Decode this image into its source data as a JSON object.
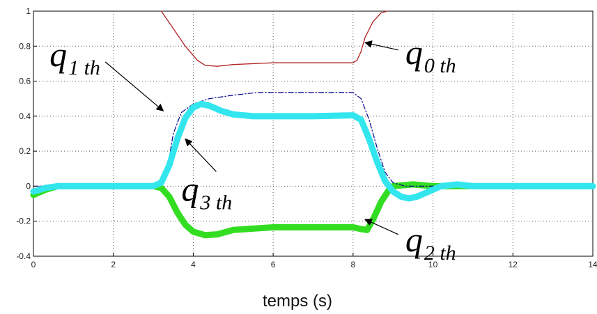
{
  "chart_data": {
    "type": "line",
    "title": "",
    "xlabel": "temps (s)",
    "ylabel": "",
    "xlim": [
      0,
      14
    ],
    "ylim": [
      -0.4,
      1
    ],
    "xticks": [
      "0",
      "2",
      "4",
      "6",
      "8",
      "10",
      "12",
      "14"
    ],
    "yticks": [
      "-0.4",
      "-0.2",
      "0",
      "0.2",
      "0.4",
      "0.6",
      "0.8",
      "1"
    ],
    "grid": true,
    "series": [
      {
        "color": "#b22222",
        "style": "solid",
        "x": [
          3.2,
          3.5,
          3.8,
          4.1,
          4.3,
          4.6,
          5.0,
          6.0,
          7.0,
          8.0,
          8.1,
          8.2,
          8.3,
          8.5,
          8.7,
          8.85
        ],
        "y": [
          1.0,
          0.9,
          0.8,
          0.72,
          0.69,
          0.685,
          0.695,
          0.705,
          0.705,
          0.705,
          0.72,
          0.77,
          0.85,
          0.94,
          0.99,
          1.0
        ]
      },
      {
        "color": "#00008b",
        "style": "dashdot",
        "x": [
          0,
          3.0,
          3.2,
          3.35,
          3.5,
          3.7,
          4.0,
          4.4,
          5.0,
          5.6,
          6.0,
          7.0,
          8.0,
          8.2,
          8.4,
          8.6,
          8.8,
          9.0,
          9.3,
          10.0,
          14.0
        ],
        "y": [
          0,
          0,
          0.02,
          0.1,
          0.3,
          0.42,
          0.47,
          0.5,
          0.52,
          0.535,
          0.535,
          0.535,
          0.535,
          0.5,
          0.38,
          0.22,
          0.08,
          0.02,
          0.0,
          0.0,
          0.0
        ]
      },
      {
        "color": "#33dd22",
        "style": "thick",
        "x": [
          0,
          0.1,
          0.3,
          0.6,
          3.0,
          3.2,
          3.4,
          3.6,
          3.8,
          4.0,
          4.3,
          4.6,
          5.0,
          6.0,
          7.0,
          8.0,
          8.2,
          8.35,
          8.5,
          8.7,
          8.9,
          9.0,
          9.5,
          10.0,
          14.0
        ],
        "y": [
          -0.05,
          -0.04,
          -0.02,
          0.0,
          0.0,
          -0.01,
          -0.06,
          -0.15,
          -0.22,
          -0.26,
          -0.28,
          -0.275,
          -0.25,
          -0.235,
          -0.235,
          -0.235,
          -0.245,
          -0.25,
          -0.19,
          -0.09,
          -0.02,
          0.0,
          0.01,
          0.0,
          0.0
        ]
      },
      {
        "color": "#33e6ee",
        "style": "thick",
        "x": [
          0,
          0.1,
          0.3,
          0.6,
          3.0,
          3.2,
          3.4,
          3.6,
          3.8,
          4.0,
          4.2,
          4.4,
          4.7,
          5.0,
          5.5,
          6.0,
          7.0,
          8.0,
          8.2,
          8.4,
          8.6,
          8.8,
          9.0,
          9.2,
          9.4,
          9.6,
          9.9,
          10.2,
          10.6,
          11.0,
          14.0
        ],
        "y": [
          -0.03,
          -0.025,
          -0.01,
          0.0,
          0.0,
          0.02,
          0.12,
          0.27,
          0.39,
          0.45,
          0.47,
          0.46,
          0.43,
          0.41,
          0.4,
          0.4,
          0.4,
          0.405,
          0.38,
          0.27,
          0.14,
          0.03,
          -0.03,
          -0.06,
          -0.07,
          -0.06,
          -0.03,
          0.0,
          0.01,
          0.0,
          0.0
        ]
      }
    ],
    "annotations": [
      {
        "label": "q",
        "sub": "0 th",
        "at": [
          9.9,
          0.77
        ],
        "target": [
          8.3,
          0.82
        ]
      },
      {
        "label": "q",
        "sub": "1 th",
        "at": [
          1.1,
          0.75
        ],
        "target": [
          3.25,
          0.43
        ]
      },
      {
        "label": "q",
        "sub": "2 th",
        "at": [
          9.9,
          -0.3
        ],
        "target": [
          8.3,
          -0.19
        ]
      },
      {
        "label": "q",
        "sub": "3 th",
        "at": [
          4.4,
          -0.02
        ],
        "target": [
          3.8,
          0.27
        ]
      }
    ]
  }
}
